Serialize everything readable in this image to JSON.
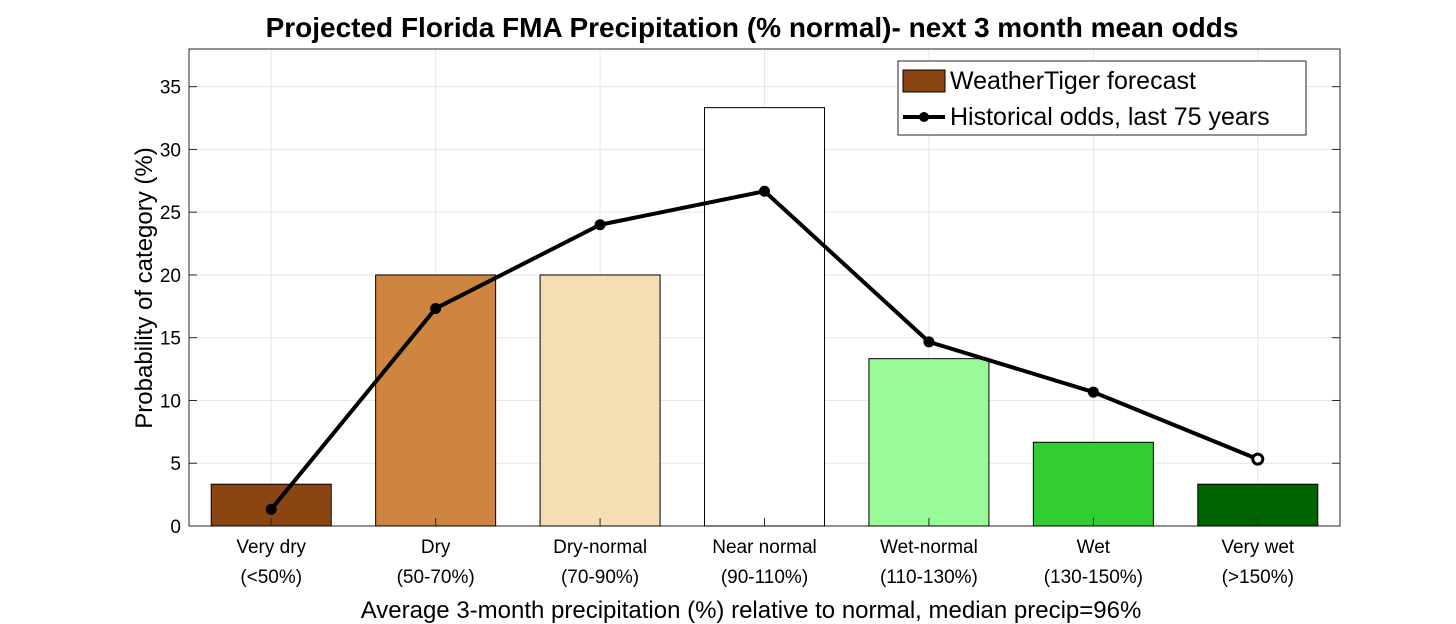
{
  "chart_data": {
    "type": "bar",
    "title": "Projected Florida FMA Precipitation (% normal)- next 3 month mean odds",
    "xlabel": "Average 3-month precipitation (%) relative to normal, median precip=96%",
    "ylabel": "Probability of category (%)",
    "ylim": [
      0,
      38
    ],
    "yticks": [
      0,
      5,
      10,
      15,
      20,
      25,
      30,
      35
    ],
    "grid": true,
    "legend_position": "top-right",
    "categories": [
      {
        "name": "Very dry",
        "range": "(<50%)"
      },
      {
        "name": "Dry",
        "range": "(50-70%)"
      },
      {
        "name": "Dry-normal",
        "range": "(70-90%)"
      },
      {
        "name": "Near normal",
        "range": "(90-110%)"
      },
      {
        "name": "Wet-normal",
        "range": "(110-130%)"
      },
      {
        "name": "Wet",
        "range": "(130-150%)"
      },
      {
        "name": "Very wet",
        "range": "(>150%)"
      }
    ],
    "series": [
      {
        "name": "WeatherTiger forecast",
        "type": "bar",
        "values": [
          3.33,
          20,
          20,
          33.33,
          13.33,
          6.67,
          3.33
        ],
        "colors": [
          "#8b4513",
          "#cd853f",
          "#f5deb3",
          "#ffffff",
          "#98fb98",
          "#32cd32",
          "#006400"
        ]
      },
      {
        "name": "Historical odds, last 75 years",
        "type": "line",
        "values": [
          1.33,
          17.33,
          24,
          26.67,
          14.67,
          10.67,
          5.33
        ],
        "color": "#000000"
      }
    ]
  }
}
